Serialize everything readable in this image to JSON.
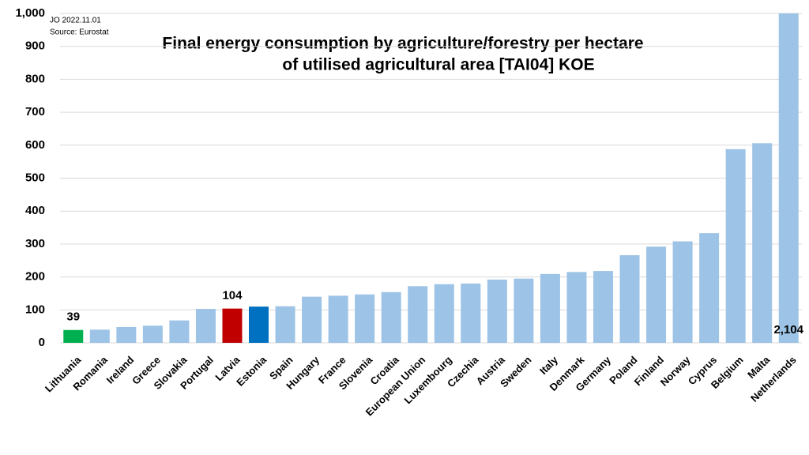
{
  "chart_data": {
    "type": "bar",
    "title": [
      "Final energy consumption by agriculture/forestry per hectare",
      "of utilised agricultural area [TAI04] KOE"
    ],
    "notes": [
      "JO 2022.11.01",
      "Source: Eurostat"
    ],
    "categories": [
      "Lithuania",
      "Romania",
      "Ireland",
      "Greece",
      "Slovakia",
      "Portugal",
      "Latvia",
      "Estonia",
      "Spain",
      "Hungary",
      "France",
      "Slovenia",
      "Croatia",
      "European Union",
      "Luxembourg",
      "Czechia",
      "Austria",
      "Sweden",
      "Italy",
      "Denmark",
      "Germany",
      "Poland",
      "Finland",
      "Norway",
      "Cyprus",
      "Belgium",
      "Malta",
      "Netherlands"
    ],
    "values": [
      39,
      40,
      48,
      52,
      68,
      103,
      104,
      110,
      111,
      140,
      143,
      147,
      154,
      172,
      178,
      180,
      192,
      195,
      209,
      215,
      218,
      266,
      292,
      308,
      333,
      588,
      606,
      2104
    ],
    "value_labels": [
      "39",
      null,
      null,
      null,
      null,
      null,
      "104",
      null,
      null,
      null,
      null,
      null,
      null,
      null,
      null,
      null,
      null,
      null,
      null,
      null,
      null,
      null,
      null,
      null,
      null,
      null,
      null,
      "2,104"
    ],
    "colors": [
      "#00b050",
      "#9dc3e6",
      "#9dc3e6",
      "#9dc3e6",
      "#9dc3e6",
      "#9dc3e6",
      "#c00000",
      "#0070c0",
      "#9dc3e6",
      "#9dc3e6",
      "#9dc3e6",
      "#9dc3e6",
      "#9dc3e6",
      "#9dc3e6",
      "#9dc3e6",
      "#9dc3e6",
      "#9dc3e6",
      "#9dc3e6",
      "#9dc3e6",
      "#9dc3e6",
      "#9dc3e6",
      "#9dc3e6",
      "#9dc3e6",
      "#9dc3e6",
      "#9dc3e6",
      "#9dc3e6",
      "#9dc3e6",
      "#9dc3e6"
    ],
    "ylim": [
      0,
      1000
    ],
    "yticks": [
      0,
      100,
      200,
      300,
      400,
      500,
      600,
      700,
      800,
      900,
      {
        "value": 1000,
        "label": "1,000"
      }
    ],
    "grid": true
  }
}
